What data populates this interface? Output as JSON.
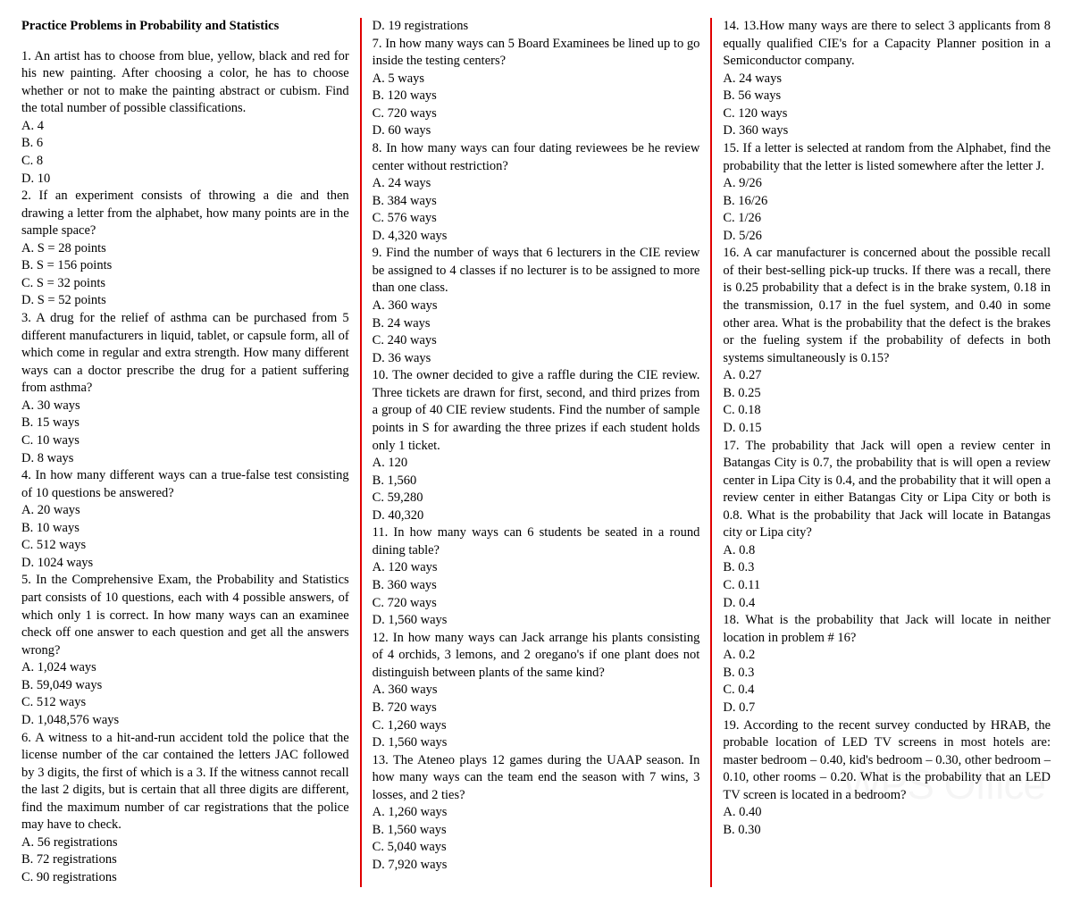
{
  "title": "Practice Problems in Probability and Statistics",
  "col1": {
    "q1": "1. An artist has to choose from blue, yellow, black and red for his new painting. After choosing a color, he has to choose whether or not to make the painting abstract or cubism. Find the total number of possible classifications.",
    "q1a": "A. 4",
    "q1b": "B. 6",
    "q1c": "C. 8",
    "q1d": "D. 10",
    "q2": "2. If an experiment consists of throwing a die and then drawing a letter from the alphabet, how many points are in the sample space?",
    "q2a": "A. S = 28 points",
    "q2b": "B. S = 156 points",
    "q2c": "C. S = 32 points",
    "q2d": "D. S = 52 points",
    "q3": "3. A drug for the relief of asthma can be purchased from 5 different manufacturers in liquid, tablet, or capsule form, all of which come in regular and extra strength. How many different ways can a doctor prescribe the drug for a patient suffering from asthma?",
    "q3a": "A. 30 ways",
    "q3b": "B. 15 ways",
    "q3c": "C. 10 ways",
    "q3d": "D. 8 ways",
    "q4": "4. In how many different ways can a true-false test consisting of 10 questions be answered?",
    "q4a": "A. 20 ways",
    "q4b": "B. 10 ways",
    "q4c": "C. 512 ways",
    "q4d": "D. 1024 ways",
    "q5": "5. In the Comprehensive Exam, the Probability and Statistics part consists of 10 questions, each with 4 possible answers, of which only 1 is correct. In how many ways can an examinee check off one answer to each question and get all the answers wrong?",
    "q5a": "A. 1,024 ways",
    "q5b": "B. 59,049 ways",
    "q5c": "C. 512 ways",
    "q5d": "D. 1,048,576 ways",
    "q6": "6. A witness to a hit-and-run accident told the police that the license number of the car contained the letters JAC followed by 3 digits, the first of which is a 3. If the witness cannot recall the last 2 digits, but is certain that all three digits are different, find the maximum number of car registrations that the police may have to check.",
    "q6a": "A. 56 registrations",
    "q6b": "B. 72 registrations",
    "q6c": "C. 90 registrations"
  },
  "col2": {
    "q6d": "D. 19 registrations",
    "q7": "7. In how many ways can 5 Board Examinees be lined up to go inside the testing centers?",
    "q7a": "A. 5 ways",
    "q7b": "B. 120 ways",
    "q7c": "C. 720 ways",
    "q7d": "D. 60 ways",
    "q8": "8. In how many ways can four dating reviewees be he review center without restriction?",
    "q8a": "A. 24 ways",
    "q8b": "B. 384 ways",
    "q8c": "C. 576 ways",
    "q8d": "D. 4,320 ways",
    "q9": "9. Find the number of ways that 6 lecturers in the CIE review be assigned to 4 classes if no lecturer is to be assigned to more than one class.",
    "q9a": "A. 360 ways",
    "q9b": "B. 24 ways",
    "q9c": "C. 240 ways",
    "q9d": "D. 36 ways",
    "q10": "10. The owner decided to give a raffle during the CIE review. Three tickets are drawn for first, second, and third prizes from a group of 40 CIE review students. Find the number of sample points in S for awarding the three prizes if each student holds only 1 ticket.",
    "q10a": "A. 120",
    "q10b": "B. 1,560",
    "q10c": "C. 59,280",
    "q10d": "D. 40,320",
    "q11": "11. In how many ways can 6 students be seated in a round dining table?",
    "q11a": "A. 120 ways",
    "q11b": "B. 360 ways",
    "q11c": "C. 720 ways",
    "q11d": "D. 1,560 ways",
    "q12": "12. In how many ways can   Jack arrange his plants consisting of 4 orchids, 3 lemons, and 2 oregano's if one plant does not distinguish between plants of the same kind?",
    "q12a": "A. 360 ways",
    "q12b": "B. 720 ways",
    "q12c": "C. 1,260 ways",
    "q12d": "D. 1,560 ways",
    "q13": "13. The Ateneo plays 12 games during the UAAP season. In how many ways can the team end the season with 7 wins, 3 losses, and 2 ties?",
    "q13a": "A. 1,260 ways",
    "q13b": "B. 1,560 ways",
    "q13c": "C. 5,040 ways",
    "q13d": "D. 7,920 ways"
  },
  "col3": {
    "q14": "14. 13.How many ways are there to select 3 applicants from 8 equally qualified CIE's for a Capacity Planner position in a Semiconductor company.",
    "q14a": "A. 24 ways",
    "q14b": "B. 56 ways",
    "q14c": "C. 120 ways",
    "q14d": "D. 360 ways",
    "q15": "15. If a letter is selected at random from the Alphabet, find the probability that the letter is listed somewhere after the letter J.",
    "q15a": "A. 9/26",
    "q15b": "B. 16/26",
    "q15c": "C. 1/26",
    "q15d": "D. 5/26",
    "q16": "16. A car manufacturer is concerned about the possible recall of their best-selling pick-up trucks.   If there was a recall, there is 0.25 probability that a defect is in the brake system, 0.18 in the transmission, 0.17 in the fuel system, and 0.40 in some other area.   What is the probability that the defect is the brakes or the fueling system if the probability of defects in both systems simultaneously is 0.15?",
    "q16a": "A. 0.27",
    "q16b": "B. 0.25",
    "q16c": "C. 0.18",
    "q16d": "D. 0.15",
    "q17": "17. The probability that Jack will open a review center in Batangas City is 0.7, the probability that is will open a review center in Lipa City is 0.4, and the probability that it will open a review center in either Batangas City or Lipa City or both is 0.8.   What is the probability that Jack will locate in Batangas city or Lipa city?",
    "q17a": "A. 0.8",
    "q17b": "B. 0.3",
    "q17c": "C. 0.11",
    "q17d": "D. 0.4",
    "q18": "18. What is the probability that Jack will locate in neither location in problem # 16?",
    "q18a": "A. 0.2",
    "q18b": "B. 0.3",
    "q18c": "C. 0.4",
    "q18d": "D. 0.7",
    "q19": "19. According to the recent survey conducted by HRAB, the probable location of LED TV screens in most hotels are: master bedroom – 0.40, kid's bedroom – 0.30, other bedroom – 0.10, other rooms – 0.20.   What is the probability that an LED TV screen is located in a bedroom?",
    "q19a": "A. 0.40",
    "q19b": "B. 0.30"
  },
  "watermark": "WPS Office"
}
